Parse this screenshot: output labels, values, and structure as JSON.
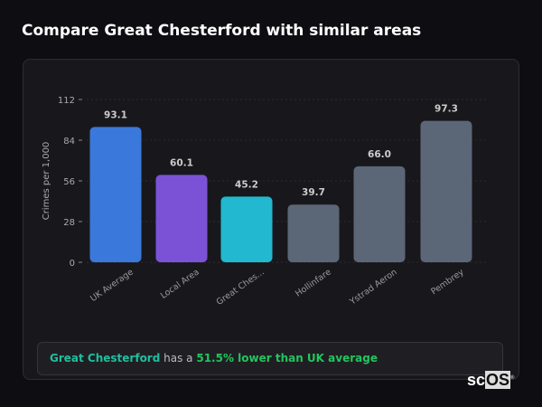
{
  "title": "Compare Great Chesterford with similar areas",
  "chart_data": {
    "type": "bar",
    "categories": [
      "UK Average",
      "Local Area",
      "Great Ches...",
      "Hollinfare",
      "Ystrad Aeron",
      "Pembrey"
    ],
    "values": [
      93.1,
      60.1,
      45.2,
      39.7,
      66.0,
      97.3
    ],
    "value_labels": [
      "93.1",
      "60.1",
      "45.2",
      "39.7",
      "66.0",
      "97.3"
    ],
    "colors": [
      "#3b78db",
      "#7b52d6",
      "#22b8cf",
      "#5b6677",
      "#5b6677",
      "#5b6677"
    ],
    "ylabel": "Crimes per 1,000",
    "xlabel": "",
    "ylim": [
      0,
      112
    ],
    "yticks": [
      0,
      28,
      56,
      84,
      112
    ],
    "grid": true
  },
  "footer": {
    "area": "Great Chesterford",
    "middle": " has a ",
    "comparison": "51.5% lower than UK average"
  },
  "logo": {
    "text_a": "sc",
    "text_b": "OS",
    "mark": "®"
  }
}
